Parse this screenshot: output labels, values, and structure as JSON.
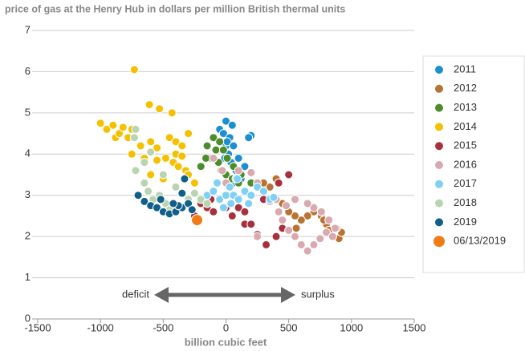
{
  "chart_data": {
    "type": "scatter",
    "title": "price of gas at the Henry Hub in dollars per million British thermal units",
    "x_label": "billion cubic feet",
    "annotations": [
      "deficit",
      "surplus"
    ],
    "xlim": [
      -1500,
      1500
    ],
    "xticks": [
      -1500,
      -1000,
      -500,
      0,
      500,
      1000,
      1500
    ],
    "ylim": [
      0,
      7
    ],
    "yticks": [
      0,
      1,
      2,
      3,
      4,
      5,
      6,
      7
    ],
    "grid": true,
    "legend": "right",
    "series": [
      {
        "name": "2011",
        "color": "#1a8fd1",
        "marker_size": 5,
        "x": [
          -50,
          0,
          50,
          -20,
          30,
          0,
          20,
          -10,
          40,
          200,
          180,
          -30,
          10,
          60,
          100,
          80,
          120,
          60,
          150
        ],
        "values": [
          4.6,
          4.8,
          4.7,
          4.5,
          4.4,
          4.2,
          4.0,
          3.9,
          3.8,
          4.45,
          4.4,
          4.1,
          4.3,
          4.2,
          3.9,
          3.6,
          3.4,
          3.3,
          3.7
        ]
      },
      {
        "name": "2012",
        "color": "#b87333",
        "marker_size": 5,
        "x": [
          900,
          850,
          920,
          880,
          800,
          760,
          700,
          650,
          600,
          550,
          500,
          450,
          400,
          350,
          400,
          300,
          820,
          780,
          560
        ],
        "values": [
          1.95,
          2.0,
          2.1,
          2.2,
          2.3,
          2.5,
          2.6,
          2.5,
          2.4,
          2.5,
          2.6,
          2.8,
          2.9,
          3.2,
          3.4,
          3.3,
          2.15,
          2.4,
          2.2
        ]
      },
      {
        "name": "2013",
        "color": "#4c8c2b",
        "marker_size": 5,
        "x": [
          -100,
          -50,
          -80,
          -120,
          -60,
          -40,
          0,
          50,
          100,
          -150,
          -200,
          10,
          60,
          120,
          200,
          -20,
          -160
        ],
        "values": [
          4.4,
          4.3,
          4.1,
          3.9,
          3.8,
          3.6,
          3.5,
          3.4,
          3.3,
          4.2,
          3.7,
          3.9,
          3.7,
          3.5,
          3.3,
          4.1,
          3.9
        ]
      },
      {
        "name": "2014",
        "color": "#f5c000",
        "marker_size": 5,
        "x": [
          -730,
          -610,
          -530,
          -430,
          -1000,
          -950,
          -900,
          -880,
          -850,
          -820,
          -780,
          -750,
          -680,
          -600,
          -550,
          -450,
          -400,
          -350,
          -300,
          -750,
          -650,
          -550,
          -480,
          -420,
          -380,
          -320,
          -600,
          -500,
          -400,
          -350,
          -300,
          -250
        ],
        "values": [
          6.05,
          5.2,
          5.1,
          5.0,
          4.75,
          4.6,
          4.7,
          4.4,
          4.5,
          4.65,
          4.4,
          4.6,
          4.2,
          4.3,
          4.15,
          4.4,
          4.3,
          4.2,
          4.5,
          4.0,
          3.9,
          3.85,
          3.9,
          3.8,
          3.7,
          3.6,
          3.5,
          3.4,
          4.0,
          3.95,
          3.5,
          3.3
        ]
      },
      {
        "name": "2015",
        "color": "#a8303c",
        "marker_size": 5,
        "x": [
          -200,
          -150,
          -100,
          -50,
          0,
          50,
          100,
          150,
          150,
          200,
          250,
          400,
          450,
          320,
          -250,
          -120,
          500,
          420,
          300,
          100
        ],
        "values": [
          2.8,
          2.7,
          2.6,
          2.9,
          2.7,
          2.5,
          2.7,
          2.6,
          2.3,
          2.3,
          2.05,
          2.0,
          2.2,
          1.8,
          2.5,
          2.9,
          3.5,
          3.3,
          2.9,
          2.9
        ]
      },
      {
        "name": "2016",
        "color": "#d9a9b0",
        "marker_size": 5,
        "x": [
          -100,
          100,
          200,
          250,
          300,
          350,
          420,
          450,
          500,
          550,
          600,
          650,
          700,
          750,
          800,
          850,
          870,
          820,
          760,
          700,
          650,
          550,
          480,
          400,
          250,
          0,
          80,
          -30
        ],
        "values": [
          3.9,
          3.6,
          3.55,
          3.3,
          3.1,
          2.85,
          2.6,
          2.4,
          2.15,
          2.0,
          1.8,
          1.65,
          1.8,
          1.95,
          2.1,
          2.0,
          2.2,
          2.4,
          2.6,
          2.7,
          2.8,
          2.9,
          2.75,
          2.9,
          2.0,
          3.3,
          3.4,
          3.6
        ]
      },
      {
        "name": "2017",
        "color": "#7fd0f5",
        "marker_size": 5,
        "x": [
          -150,
          -100,
          -50,
          0,
          30,
          60,
          100,
          150,
          200,
          250,
          300,
          350,
          -20,
          90,
          -70,
          180,
          380,
          40
        ],
        "values": [
          3.0,
          3.1,
          2.9,
          3.0,
          3.2,
          3.0,
          2.9,
          3.1,
          3.0,
          3.2,
          3.1,
          2.9,
          2.7,
          3.4,
          3.3,
          2.8,
          2.95,
          2.8
        ]
      },
      {
        "name": "2018",
        "color": "#b8d4b0",
        "marker_size": 5,
        "x": [
          -720,
          -730,
          -600,
          -650,
          -720,
          -650,
          -620,
          -580,
          -530,
          -480,
          -420,
          -350,
          -300,
          -250,
          -200,
          -150,
          -500,
          -400,
          -450
        ],
        "values": [
          4.6,
          4.4,
          4.05,
          3.8,
          3.6,
          3.3,
          3.1,
          2.9,
          3.0,
          2.8,
          2.75,
          2.7,
          2.9,
          3.05,
          2.9,
          2.8,
          3.5,
          3.2,
          2.65
        ]
      },
      {
        "name": "2019",
        "color": "#0f5f8a",
        "marker_size": 5,
        "x": [
          -700,
          -650,
          -600,
          -550,
          -500,
          -450,
          -400,
          -350,
          -300,
          -270,
          -330,
          -350,
          -380,
          -520,
          -420
        ],
        "values": [
          3.0,
          2.85,
          2.75,
          2.7,
          2.6,
          2.55,
          2.6,
          2.7,
          2.8,
          2.65,
          3.4,
          3.05,
          2.75,
          2.9,
          2.8
        ]
      },
      {
        "name": "06/13/2019",
        "color": "#f07c18",
        "marker_size": 7,
        "x": [
          -230
        ],
        "values": [
          2.4
        ]
      }
    ]
  }
}
